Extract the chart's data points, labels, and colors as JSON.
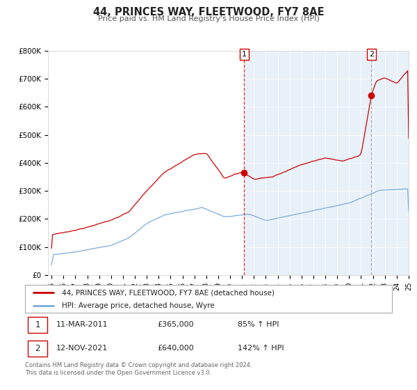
{
  "title": "44, PRINCES WAY, FLEETWOOD, FY7 8AE",
  "subtitle": "Price paid vs. HM Land Registry's House Price Index (HPI)",
  "legend_line1": "44, PRINCES WAY, FLEETWOOD, FY7 8AE (detached house)",
  "legend_line2": "HPI: Average price, detached house, Wyre",
  "annotation1_date": "11-MAR-2011",
  "annotation1_price": "£365,000",
  "annotation1_hpi": "85% ↑ HPI",
  "annotation2_date": "12-NOV-2021",
  "annotation2_price": "£640,000",
  "annotation2_hpi": "142% ↑ HPI",
  "footer": "Contains HM Land Registry data © Crown copyright and database right 2024.\nThis data is licensed under the Open Government Licence v3.0.",
  "red_color": "#cc0000",
  "blue_color": "#7aacdc",
  "shading_color": "#e8f0f8",
  "grid_color": "#cccccc",
  "background_color": "#ffffff",
  "ylim": [
    0,
    800000
  ],
  "ylabel_ticks": [
    0,
    100000,
    200000,
    300000,
    400000,
    500000,
    600000,
    700000,
    800000
  ],
  "ylabel_labels": [
    "£0",
    "£100K",
    "£200K",
    "£300K",
    "£400K",
    "£500K",
    "£600K",
    "£700K",
    "£800K"
  ],
  "x_start_year": 1995,
  "x_end_year": 2025,
  "event1_year": 2011.19,
  "event2_year": 2021.87,
  "event1_price": 365000,
  "event2_price": 640000
}
